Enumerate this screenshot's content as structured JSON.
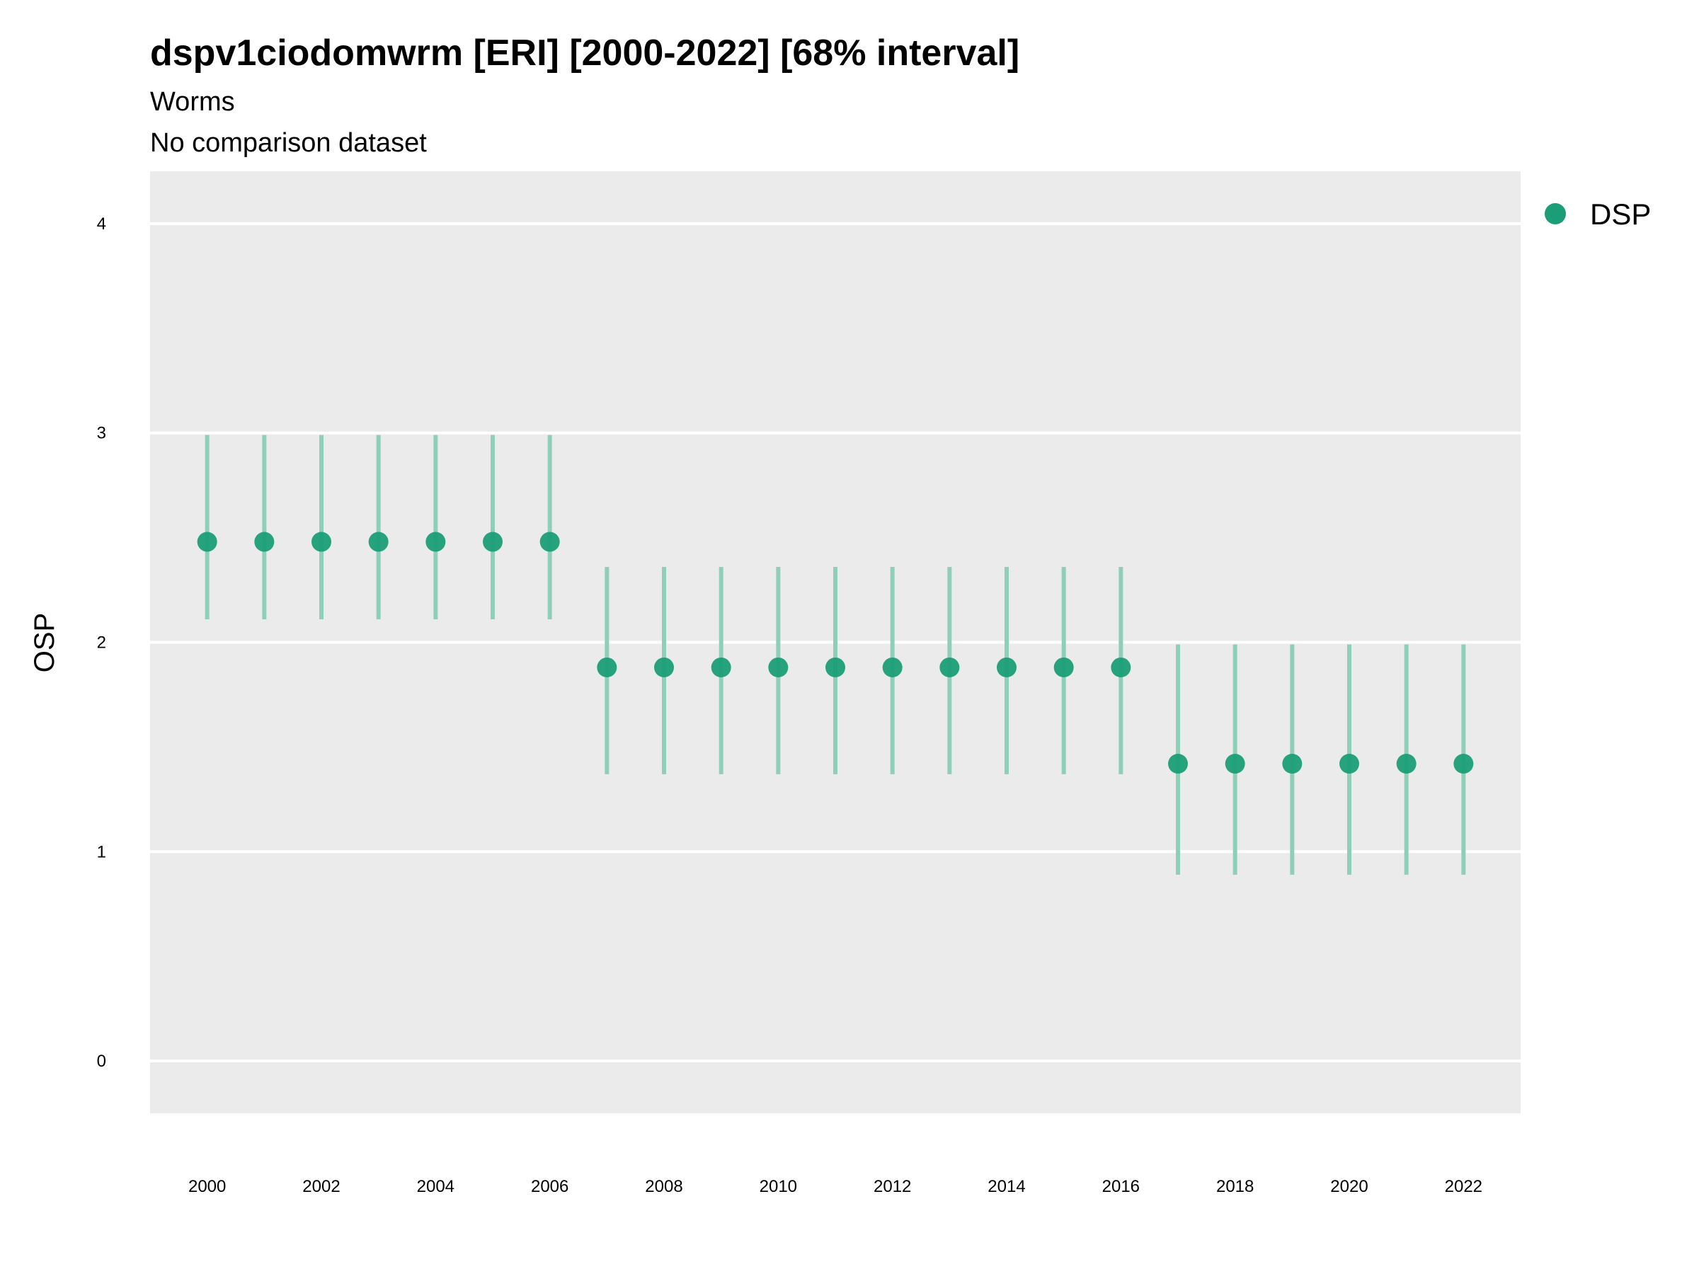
{
  "chart_data": {
    "type": "scatter",
    "title": "dspv1ciodomwrm [ERI] [2000-2022] [68% interval]",
    "subtitle": "Worms",
    "subtitle2": "No comparison dataset",
    "xlabel": "",
    "ylabel": "OSP",
    "xlim": [
      1999,
      2023
    ],
    "ylim": [
      -0.25,
      4.25
    ],
    "x_ticks": [
      2000,
      2002,
      2004,
      2006,
      2008,
      2010,
      2012,
      2014,
      2016,
      2018,
      2020,
      2022
    ],
    "y_ticks": [
      0,
      1,
      2,
      3,
      4
    ],
    "grid": true,
    "legend_position": "right",
    "series": [
      {
        "name": "DSP",
        "color": "#1b9e77",
        "points": [
          {
            "x": 2000,
            "y": 2.48,
            "low": 2.11,
            "high": 2.99
          },
          {
            "x": 2001,
            "y": 2.48,
            "low": 2.11,
            "high": 2.99
          },
          {
            "x": 2002,
            "y": 2.48,
            "low": 2.11,
            "high": 2.99
          },
          {
            "x": 2003,
            "y": 2.48,
            "low": 2.11,
            "high": 2.99
          },
          {
            "x": 2004,
            "y": 2.48,
            "low": 2.11,
            "high": 2.99
          },
          {
            "x": 2005,
            "y": 2.48,
            "low": 2.11,
            "high": 2.99
          },
          {
            "x": 2006,
            "y": 2.48,
            "low": 2.11,
            "high": 2.99
          },
          {
            "x": 2007,
            "y": 1.88,
            "low": 1.37,
            "high": 2.36
          },
          {
            "x": 2008,
            "y": 1.88,
            "low": 1.37,
            "high": 2.36
          },
          {
            "x": 2009,
            "y": 1.88,
            "low": 1.37,
            "high": 2.36
          },
          {
            "x": 2010,
            "y": 1.88,
            "low": 1.37,
            "high": 2.36
          },
          {
            "x": 2011,
            "y": 1.88,
            "low": 1.37,
            "high": 2.36
          },
          {
            "x": 2012,
            "y": 1.88,
            "low": 1.37,
            "high": 2.36
          },
          {
            "x": 2013,
            "y": 1.88,
            "low": 1.37,
            "high": 2.36
          },
          {
            "x": 2014,
            "y": 1.88,
            "low": 1.37,
            "high": 2.36
          },
          {
            "x": 2015,
            "y": 1.88,
            "low": 1.37,
            "high": 2.36
          },
          {
            "x": 2016,
            "y": 1.88,
            "low": 1.37,
            "high": 2.36
          },
          {
            "x": 2017,
            "y": 1.42,
            "low": 0.89,
            "high": 1.99
          },
          {
            "x": 2018,
            "y": 1.42,
            "low": 0.89,
            "high": 1.99
          },
          {
            "x": 2019,
            "y": 1.42,
            "low": 0.89,
            "high": 1.99
          },
          {
            "x": 2020,
            "y": 1.42,
            "low": 0.89,
            "high": 1.99
          },
          {
            "x": 2021,
            "y": 1.42,
            "low": 0.89,
            "high": 1.99
          },
          {
            "x": 2022,
            "y": 1.42,
            "low": 0.89,
            "high": 1.99
          }
        ]
      }
    ],
    "colors": {
      "panel_background": "#ebebeb",
      "grid": "#ffffff",
      "interval": "#8fcfb8",
      "point": "#1b9e77"
    }
  }
}
